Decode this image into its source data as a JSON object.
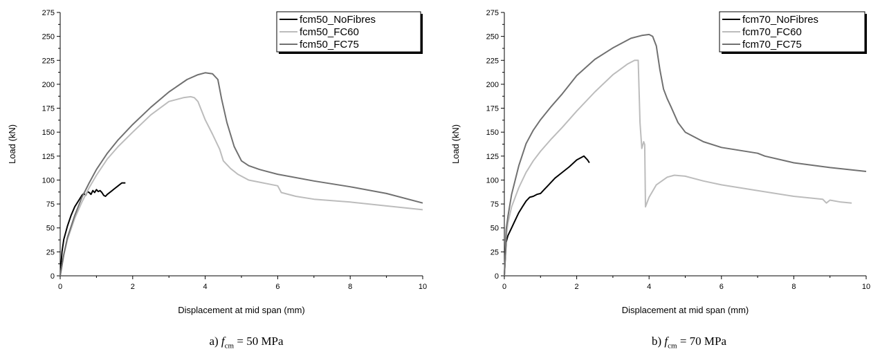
{
  "chart_data": [
    {
      "type": "line",
      "xlabel": "Displacement at mid span (mm)",
      "ylabel": "Load (kN)",
      "xlim": [
        0,
        10
      ],
      "ylim": [
        0,
        275
      ],
      "xticks": [
        0,
        2,
        4,
        6,
        8,
        10
      ],
      "yticks": [
        0,
        25,
        50,
        75,
        100,
        125,
        150,
        175,
        200,
        225,
        250,
        275
      ],
      "legend_position": "top-right",
      "caption": {
        "prefix": "a) ",
        "symbol": "f",
        "subscript": "cm",
        "suffix": " = 50 MPa"
      },
      "series": [
        {
          "name": "fcm50_NoFibres",
          "color": "#000000",
          "x": [
            0,
            0.05,
            0.1,
            0.2,
            0.3,
            0.4,
            0.5,
            0.6,
            0.65,
            0.7,
            0.75,
            0.8,
            0.85,
            0.9,
            0.95,
            1.0,
            1.05,
            1.1,
            1.15,
            1.2,
            1.25,
            1.3,
            1.4,
            1.5,
            1.6,
            1.7,
            1.8
          ],
          "y": [
            0,
            25,
            38,
            52,
            63,
            72,
            78,
            84,
            86,
            84,
            88,
            87,
            85,
            89,
            87,
            90,
            88,
            89,
            87,
            84,
            83,
            85,
            88,
            91,
            94,
            97,
            97
          ]
        },
        {
          "name": "fcm50_FC60",
          "color": "#bcbcbc",
          "x": [
            0,
            0.1,
            0.2,
            0.4,
            0.6,
            0.8,
            1.0,
            1.3,
            1.6,
            2.0,
            2.5,
            3.0,
            3.4,
            3.6,
            3.7,
            3.8,
            4.0,
            4.2,
            4.4,
            4.5,
            4.7,
            4.9,
            5.2,
            5.6,
            6.0,
            6.1,
            6.5,
            7.0,
            8.0,
            9.0,
            10.0
          ],
          "y": [
            0,
            22,
            38,
            60,
            77,
            92,
            105,
            122,
            135,
            150,
            168,
            182,
            186,
            187,
            186,
            182,
            163,
            148,
            132,
            120,
            112,
            106,
            100,
            97,
            94,
            87,
            83,
            80,
            77,
            73,
            69
          ]
        },
        {
          "name": "fcm50_FC75",
          "color": "#707070",
          "x": [
            0,
            0.1,
            0.2,
            0.4,
            0.6,
            0.8,
            1.0,
            1.3,
            1.6,
            2.0,
            2.5,
            3.0,
            3.5,
            3.8,
            4.0,
            4.2,
            4.35,
            4.45,
            4.6,
            4.8,
            5.0,
            5.2,
            5.5,
            6.0,
            7.0,
            8.0,
            9.0,
            10.0
          ],
          "y": [
            0,
            22,
            40,
            63,
            82,
            97,
            111,
            128,
            142,
            158,
            176,
            192,
            205,
            210,
            212,
            211,
            205,
            185,
            160,
            135,
            120,
            115,
            111,
            106,
            99,
            93,
            86,
            76
          ]
        }
      ]
    },
    {
      "type": "line",
      "xlabel": "Displacement at mid span (mm)",
      "ylabel": "Load (kN)",
      "xlim": [
        0,
        10
      ],
      "ylim": [
        0,
        275
      ],
      "xticks": [
        0,
        2,
        4,
        6,
        8,
        10
      ],
      "yticks": [
        0,
        25,
        50,
        75,
        100,
        125,
        150,
        175,
        200,
        225,
        250,
        275
      ],
      "legend_position": "top-right",
      "caption": {
        "prefix": "b) ",
        "symbol": "f",
        "subscript": "cm",
        "suffix": " = 70 MPa"
      },
      "series": [
        {
          "name": "fcm70_NoFibres",
          "color": "#000000",
          "x": [
            0,
            0.05,
            0.1,
            0.2,
            0.3,
            0.4,
            0.5,
            0.6,
            0.7,
            0.8,
            0.9,
            1.0,
            1.1,
            1.2,
            1.4,
            1.6,
            1.8,
            2.0,
            2.2,
            2.3,
            2.35
          ],
          "y": [
            0,
            35,
            42,
            50,
            58,
            66,
            72,
            78,
            82,
            83,
            85,
            86,
            90,
            94,
            102,
            108,
            114,
            121,
            125,
            121,
            118
          ]
        },
        {
          "name": "fcm70_FC60",
          "color": "#bcbcbc",
          "x": [
            0,
            0.05,
            0.1,
            0.2,
            0.4,
            0.6,
            0.8,
            1.0,
            1.3,
            1.6,
            2.0,
            2.5,
            3.0,
            3.4,
            3.6,
            3.7,
            3.75,
            3.8,
            3.85,
            3.88,
            3.9,
            4.0,
            4.2,
            4.5,
            4.7,
            5.0,
            5.5,
            6.0,
            7.0,
            8.0,
            8.8,
            8.9,
            9.0,
            9.3,
            9.6
          ],
          "y": [
            0,
            40,
            55,
            72,
            92,
            108,
            120,
            130,
            143,
            155,
            172,
            192,
            210,
            221,
            225,
            225,
            160,
            133,
            140,
            137,
            72,
            82,
            95,
            103,
            105,
            104,
            99,
            95,
            89,
            83,
            80,
            76,
            79,
            77,
            76
          ]
        },
        {
          "name": "fcm70_FC75",
          "color": "#707070",
          "x": [
            0,
            0.05,
            0.1,
            0.2,
            0.4,
            0.6,
            0.8,
            1.0,
            1.3,
            1.6,
            2.0,
            2.5,
            3.0,
            3.5,
            3.8,
            4.0,
            4.1,
            4.2,
            4.3,
            4.4,
            4.5,
            4.6,
            4.8,
            5.0,
            5.5,
            6.0,
            7.0,
            7.2,
            8.0,
            9.0,
            10.0
          ],
          "y": [
            0,
            48,
            62,
            85,
            115,
            138,
            152,
            163,
            177,
            190,
            209,
            226,
            238,
            248,
            251,
            252,
            250,
            240,
            215,
            195,
            185,
            177,
            160,
            150,
            140,
            134,
            128,
            125,
            118,
            113,
            109
          ]
        }
      ]
    }
  ]
}
